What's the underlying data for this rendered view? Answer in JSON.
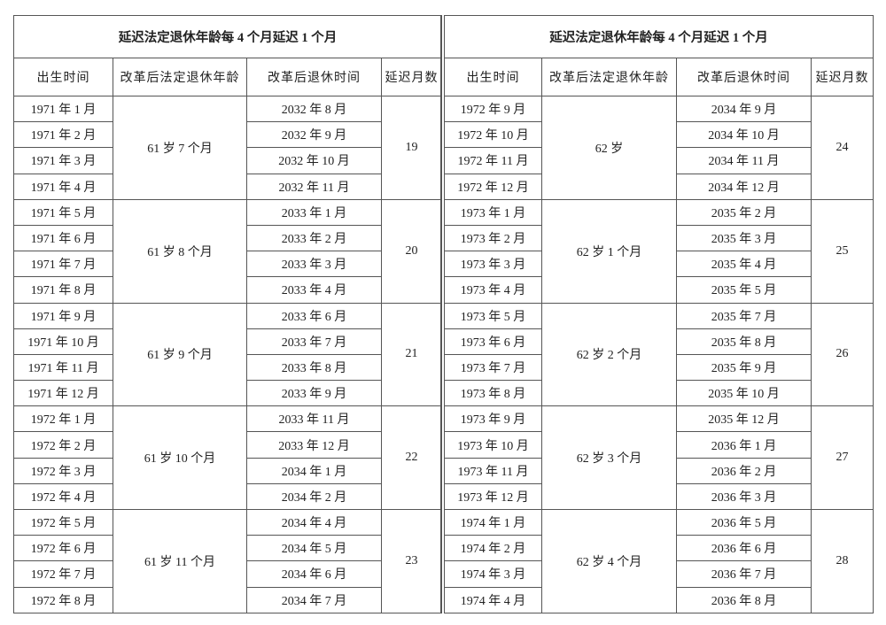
{
  "tables": [
    {
      "title": "延迟法定退休年龄每 4 个月延迟 1 个月",
      "headers": [
        "出生时间",
        "改革后法定退休年龄",
        "改革后退休时间",
        "延迟月数"
      ],
      "groups": [
        {
          "age": "61 岁 7 个月",
          "delay": 19,
          "rows": [
            {
              "birth": "1971 年 1 月",
              "retire": "2032 年 8 月"
            },
            {
              "birth": "1971 年 2 月",
              "retire": "2032 年 9 月"
            },
            {
              "birth": "1971 年 3 月",
              "retire": "2032 年 10 月"
            },
            {
              "birth": "1971 年 4 月",
              "retire": "2032 年 11 月"
            }
          ]
        },
        {
          "age": "61 岁 8 个月",
          "delay": 20,
          "rows": [
            {
              "birth": "1971 年 5 月",
              "retire": "2033 年 1 月"
            },
            {
              "birth": "1971 年 6 月",
              "retire": "2033 年 2 月"
            },
            {
              "birth": "1971 年 7 月",
              "retire": "2033 年 3 月"
            },
            {
              "birth": "1971 年 8 月",
              "retire": "2033 年 4 月"
            }
          ]
        },
        {
          "age": "61 岁 9 个月",
          "delay": 21,
          "rows": [
            {
              "birth": "1971 年 9 月",
              "retire": "2033 年 6 月"
            },
            {
              "birth": "1971 年 10 月",
              "retire": "2033 年 7 月"
            },
            {
              "birth": "1971 年 11 月",
              "retire": "2033 年 8 月"
            },
            {
              "birth": "1971 年 12 月",
              "retire": "2033 年 9 月"
            }
          ]
        },
        {
          "age": "61 岁 10 个月",
          "delay": 22,
          "rows": [
            {
              "birth": "1972 年 1 月",
              "retire": "2033 年 11 月"
            },
            {
              "birth": "1972 年 2 月",
              "retire": "2033 年 12 月"
            },
            {
              "birth": "1972 年 3 月",
              "retire": "2034 年 1 月"
            },
            {
              "birth": "1972 年 4 月",
              "retire": "2034 年 2 月"
            }
          ]
        },
        {
          "age": "61 岁 11 个月",
          "delay": 23,
          "rows": [
            {
              "birth": "1972 年 5 月",
              "retire": "2034 年 4 月"
            },
            {
              "birth": "1972 年 6 月",
              "retire": "2034 年 5 月"
            },
            {
              "birth": "1972 年 7 月",
              "retire": "2034 年 6 月"
            },
            {
              "birth": "1972 年 8 月",
              "retire": "2034 年 7 月"
            }
          ]
        }
      ]
    },
    {
      "title": "延迟法定退休年龄每 4 个月延迟 1 个月",
      "headers": [
        "出生时间",
        "改革后法定退休年龄",
        "改革后退休时间",
        "延迟月数"
      ],
      "groups": [
        {
          "age": "62 岁",
          "delay": 24,
          "rows": [
            {
              "birth": "1972 年 9 月",
              "retire": "2034 年 9 月"
            },
            {
              "birth": "1972 年 10 月",
              "retire": "2034 年 10 月"
            },
            {
              "birth": "1972 年 11 月",
              "retire": "2034 年 11 月"
            },
            {
              "birth": "1972 年 12 月",
              "retire": "2034 年 12 月"
            }
          ]
        },
        {
          "age": "62 岁 1 个月",
          "delay": 25,
          "rows": [
            {
              "birth": "1973 年 1 月",
              "retire": "2035 年 2 月"
            },
            {
              "birth": "1973 年 2 月",
              "retire": "2035 年 3 月"
            },
            {
              "birth": "1973 年 3 月",
              "retire": "2035 年 4 月"
            },
            {
              "birth": "1973 年 4 月",
              "retire": "2035 年 5 月"
            }
          ]
        },
        {
          "age": "62 岁 2 个月",
          "delay": 26,
          "rows": [
            {
              "birth": "1973 年 5 月",
              "retire": "2035 年 7 月"
            },
            {
              "birth": "1973 年 6 月",
              "retire": "2035 年 8 月"
            },
            {
              "birth": "1973 年 7 月",
              "retire": "2035 年 9 月"
            },
            {
              "birth": "1973 年 8 月",
              "retire": "2035 年 10 月"
            }
          ]
        },
        {
          "age": "62 岁 3 个月",
          "delay": 27,
          "rows": [
            {
              "birth": "1973 年 9 月",
              "retire": "2035 年 12 月"
            },
            {
              "birth": "1973 年 10 月",
              "retire": "2036 年 1 月"
            },
            {
              "birth": "1973 年 11 月",
              "retire": "2036 年 2 月"
            },
            {
              "birth": "1973 年 12 月",
              "retire": "2036 年 3 月"
            }
          ]
        },
        {
          "age": "62 岁 4 个月",
          "delay": 28,
          "rows": [
            {
              "birth": "1974 年 1 月",
              "retire": "2036 年 5 月"
            },
            {
              "birth": "1974 年 2 月",
              "retire": "2036 年 6 月"
            },
            {
              "birth": "1974 年 3 月",
              "retire": "2036 年 7 月"
            },
            {
              "birth": "1974 年 4 月",
              "retire": "2036 年 8 月"
            }
          ]
        }
      ]
    }
  ]
}
